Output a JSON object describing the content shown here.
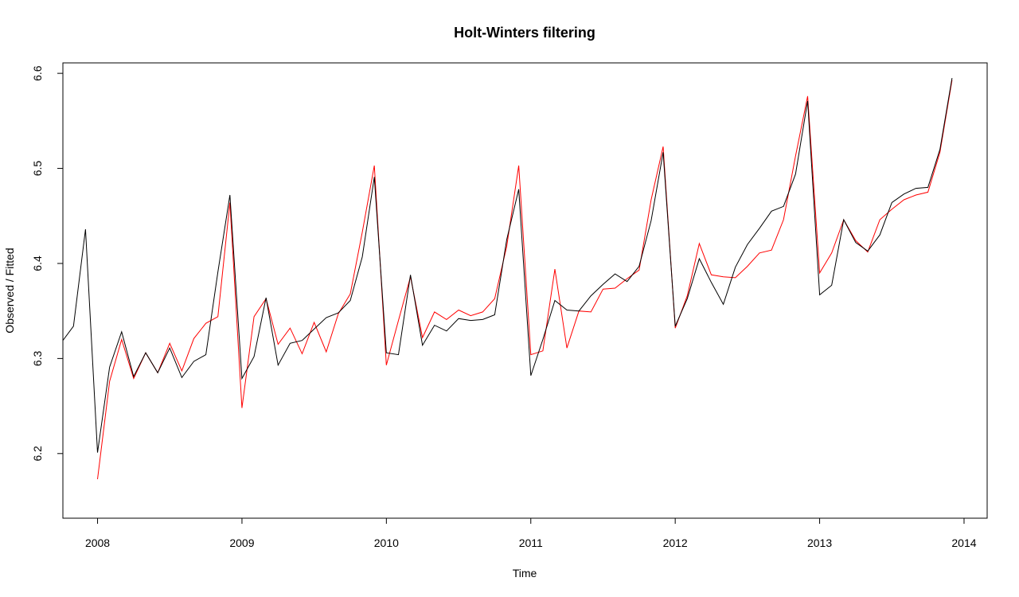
{
  "chart_data": {
    "type": "line",
    "title": "Holt-Winters filtering",
    "xlabel": "Time",
    "ylabel": "Observed / Fitted",
    "xlim": [
      2007.76,
      2014.16
    ],
    "ylim": [
      6.132,
      6.611
    ],
    "x_ticks": [
      "2008",
      "2009",
      "2010",
      "2011",
      "2012",
      "2013",
      "2014"
    ],
    "y_ticks": [
      "6.2",
      "6.3",
      "6.4",
      "6.5",
      "6.6"
    ],
    "grid": false,
    "legend": "none",
    "observed": {
      "color": "#000000",
      "start": [
        2007,
        10
      ],
      "frequency": 12,
      "values": [
        6.317,
        6.334,
        6.436,
        6.201,
        6.291,
        6.328,
        6.281,
        6.306,
        6.285,
        6.311,
        6.28,
        6.297,
        6.304,
        6.391,
        6.472,
        6.279,
        6.302,
        6.364,
        6.293,
        6.316,
        6.319,
        6.331,
        6.343,
        6.348,
        6.361,
        6.407,
        6.491,
        6.306,
        6.304,
        6.388,
        6.314,
        6.335,
        6.329,
        6.342,
        6.34,
        6.341,
        6.346,
        6.425,
        6.478,
        6.282,
        6.32,
        6.361,
        6.351,
        6.35,
        6.366,
        6.378,
        6.389,
        6.381,
        6.397,
        6.445,
        6.517,
        6.334,
        6.363,
        6.405,
        6.38,
        6.357,
        6.396,
        6.42,
        6.437,
        6.455,
        6.46,
        6.494,
        6.571,
        6.367,
        6.377,
        6.446,
        6.422,
        6.413,
        6.43,
        6.464,
        6.473,
        6.479,
        6.48,
        6.52,
        6.595
      ]
    },
    "fitted": {
      "color": "#ff0000",
      "start": [
        2008,
        1
      ],
      "frequency": 12,
      "values": [
        6.173,
        6.276,
        6.32,
        6.279,
        6.306,
        6.285,
        6.316,
        6.287,
        6.321,
        6.337,
        6.344,
        6.464,
        6.248,
        6.344,
        6.363,
        6.315,
        6.332,
        6.305,
        6.338,
        6.307,
        6.347,
        6.368,
        6.433,
        6.503,
        6.293,
        6.34,
        6.386,
        6.322,
        6.349,
        6.341,
        6.351,
        6.345,
        6.349,
        6.363,
        6.418,
        6.503,
        6.304,
        6.308,
        6.394,
        6.311,
        6.35,
        6.349,
        6.373,
        6.374,
        6.384,
        6.393,
        6.467,
        6.523,
        6.332,
        6.366,
        6.421,
        6.388,
        6.386,
        6.385,
        6.397,
        6.411,
        6.414,
        6.446,
        6.513,
        6.576,
        6.39,
        6.411,
        6.446,
        6.424,
        6.412,
        6.446,
        6.457,
        6.467,
        6.472,
        6.475,
        6.517,
        6.593
      ]
    }
  }
}
